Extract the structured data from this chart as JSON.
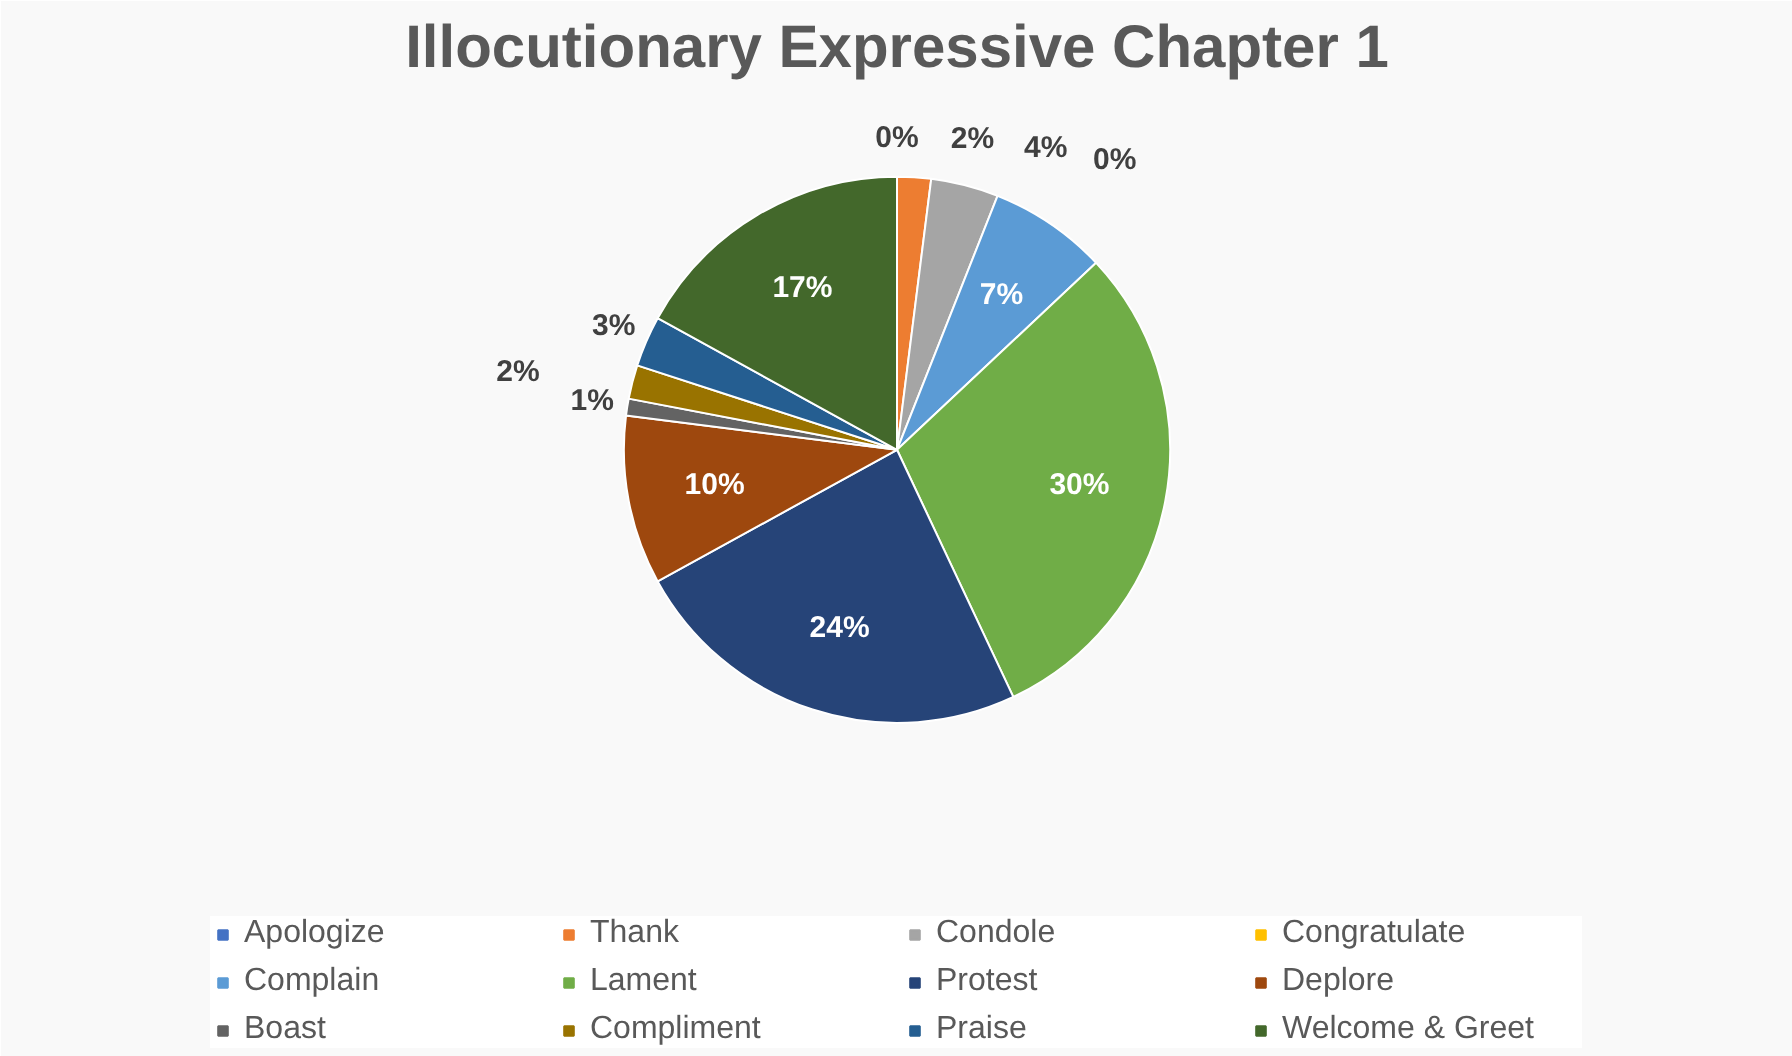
{
  "chart_data": {
    "type": "pie",
    "title": "Illocutionary Expressive Chapter 1",
    "categories": [
      "Apologize",
      "Thank",
      "Condole",
      "Congratulate",
      "Complain",
      "Lament",
      "Protest",
      "Deplore",
      "Boast",
      "Compliment",
      "Praise",
      "Welcome & Greet"
    ],
    "values": [
      0,
      2,
      4,
      0,
      7,
      30,
      24,
      10,
      1,
      2,
      3,
      17
    ],
    "value_labels": [
      "0%",
      "2%",
      "4%",
      "0%",
      "7%",
      "30%",
      "24%",
      "10%",
      "1%",
      "2%",
      "3%",
      "17%"
    ],
    "colors": [
      "#4472c4",
      "#ed7d31",
      "#a5a5a5",
      "#ffc000",
      "#5b9bd5",
      "#70ad47",
      "#264478",
      "#9e480e",
      "#636363",
      "#997300",
      "#255e91",
      "#43682b"
    ],
    "legend": "bottom"
  }
}
